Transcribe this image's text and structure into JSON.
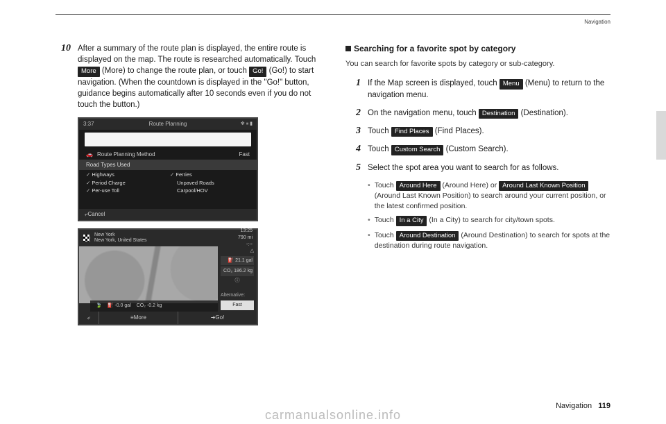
{
  "header": {
    "section": "Navigation"
  },
  "left": {
    "step10": {
      "num": "10",
      "text_a": "After a summary of the route plan is displayed, the entire route is displayed on the map. The route is researched automatically. Touch ",
      "more": "More",
      "text_b": " (More) to change the route plan, or touch ",
      "go": "Go!",
      "text_c": " (Go!) to start navigation. (When the countdown is displayed in the \"Go!\" button, guidance begins automatically after 10 seconds even if you do not touch the button.)"
    },
    "shot1": {
      "time": "3:37",
      "title": "Route Planning",
      "method_label": "Route Planning Method",
      "method_value": "Fast",
      "types_label": "Road Types Used",
      "highways": "Highways",
      "ferries": "Ferries",
      "period": "Period Charge",
      "unpaved": "Unpaved Roads",
      "peruse": "Per-use Toll",
      "carpool": "Carpool/HOV",
      "cancel": "Cancel"
    },
    "shot2": {
      "dest_city": "New York",
      "dest_full": "New York, United States",
      "eta": "13:25",
      "dist": "790 mi",
      "dur": "-:--",
      "fuel": "21.1 gal",
      "co2": "186.2 kg",
      "alt": "Alternative:",
      "fast": "Fast",
      "gal_val": "-0.0",
      "gal_unit": "gal",
      "kg_val": "-0.2",
      "kg_unit": "kg",
      "more": "More",
      "go": "Go!"
    }
  },
  "right": {
    "subhead": "Searching for a favorite spot by category",
    "intro": "You can search for favorite spots by category or sub-category.",
    "s1": {
      "num": "1",
      "a": "If the Map screen is displayed, touch ",
      "menu": "Menu",
      "b": " (Menu) to return to the navigation menu."
    },
    "s2": {
      "num": "2",
      "a": "On the navigation menu, touch ",
      "dest": "Destination",
      "b": " (Destination)."
    },
    "s3": {
      "num": "3",
      "a": "Touch ",
      "find": "Find Places",
      "b": " (Find Places)."
    },
    "s4": {
      "num": "4",
      "a": "Touch ",
      "custom": "Custom Search",
      "b": " (Custom Search)."
    },
    "s5": {
      "num": "5",
      "a": "Select the spot area you want to search for as follows.",
      "sub1_a": "Touch ",
      "around_here": "Around Here",
      "sub1_b": " (Around Here) or ",
      "around_last": "Around Last Known Position",
      "sub1_c": " (Around Last Known Position) to search around your current position, or the latest confirmed position.",
      "sub2_a": "Touch ",
      "in_city": "In a City",
      "sub2_b": " (In a City) to search for city/town spots.",
      "sub3_a": "Touch ",
      "around_dest": "Around Destination",
      "sub3_b": " (Around Destination) to search for spots at the destination during route navigation."
    }
  },
  "footer": {
    "section": "Navigation",
    "page": "119"
  },
  "watermark": "carmanualsonline.info"
}
